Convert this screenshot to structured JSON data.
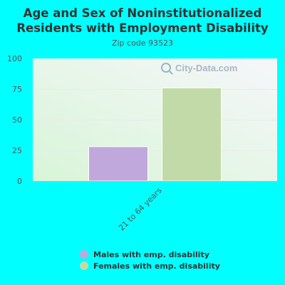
{
  "chart_data": {
    "type": "bar",
    "title": "Age and Sex of Noninstitutionalized Residents with Employment Disability",
    "subtitle": "Zip code 93523",
    "categories": [
      "21 to 64 years"
    ],
    "series": [
      {
        "name": "Males with emp. disability",
        "values": [
          28
        ],
        "color": "#c0a8dc"
      },
      {
        "name": "Females with emp. disability",
        "values": [
          76
        ],
        "color": "#c2daa8"
      }
    ],
    "ylim": [
      0,
      100
    ],
    "yticks": [
      0,
      25,
      50,
      75,
      100
    ],
    "grid": true,
    "legend_position": "bottom",
    "watermark": "City-Data.com"
  }
}
